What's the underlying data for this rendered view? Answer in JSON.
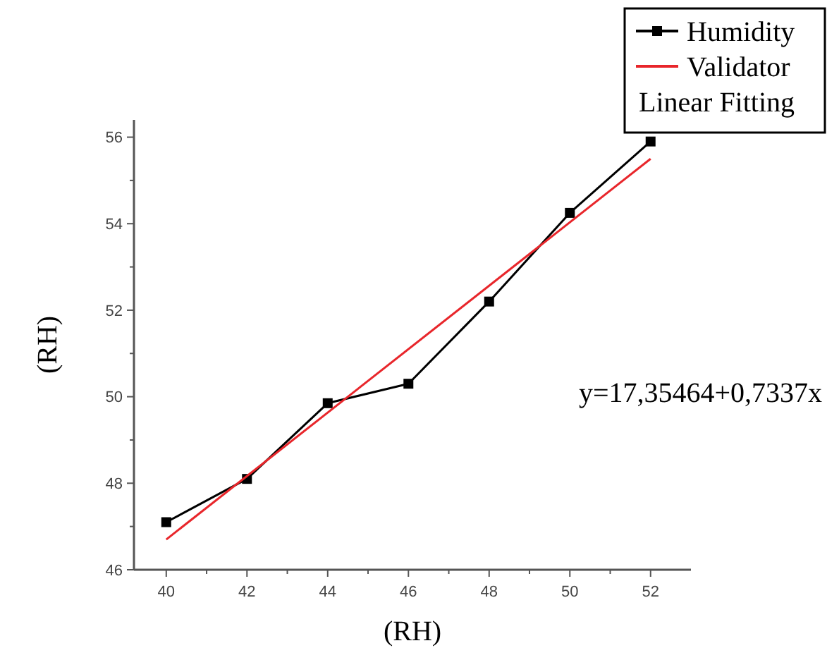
{
  "chart_data": {
    "type": "line",
    "xlabel": "(RH)",
    "ylabel": "(RH)",
    "legend_title": "Linear Fitting",
    "x": [
      40,
      42,
      44,
      46,
      48,
      50,
      52
    ],
    "series": [
      {
        "name": "Humidity",
        "color": "#000000",
        "values": [
          47.1,
          48.1,
          49.85,
          50.3,
          52.2,
          54.25,
          55.9
        ],
        "marker": "square"
      },
      {
        "name": "Validator",
        "color": "#e8262b",
        "x": [
          40,
          52
        ],
        "values": [
          46.7,
          55.5
        ],
        "marker": "none"
      }
    ],
    "xlim": [
      39.2,
      53
    ],
    "ylim": [
      46,
      56.4
    ],
    "xticks": [
      40,
      42,
      44,
      46,
      48,
      50,
      52
    ],
    "yticks": [
      46,
      48,
      50,
      52,
      54,
      56
    ],
    "annotations": [
      "y=17,35464+0,7337x"
    ],
    "legend": "top right",
    "grid": false
  }
}
